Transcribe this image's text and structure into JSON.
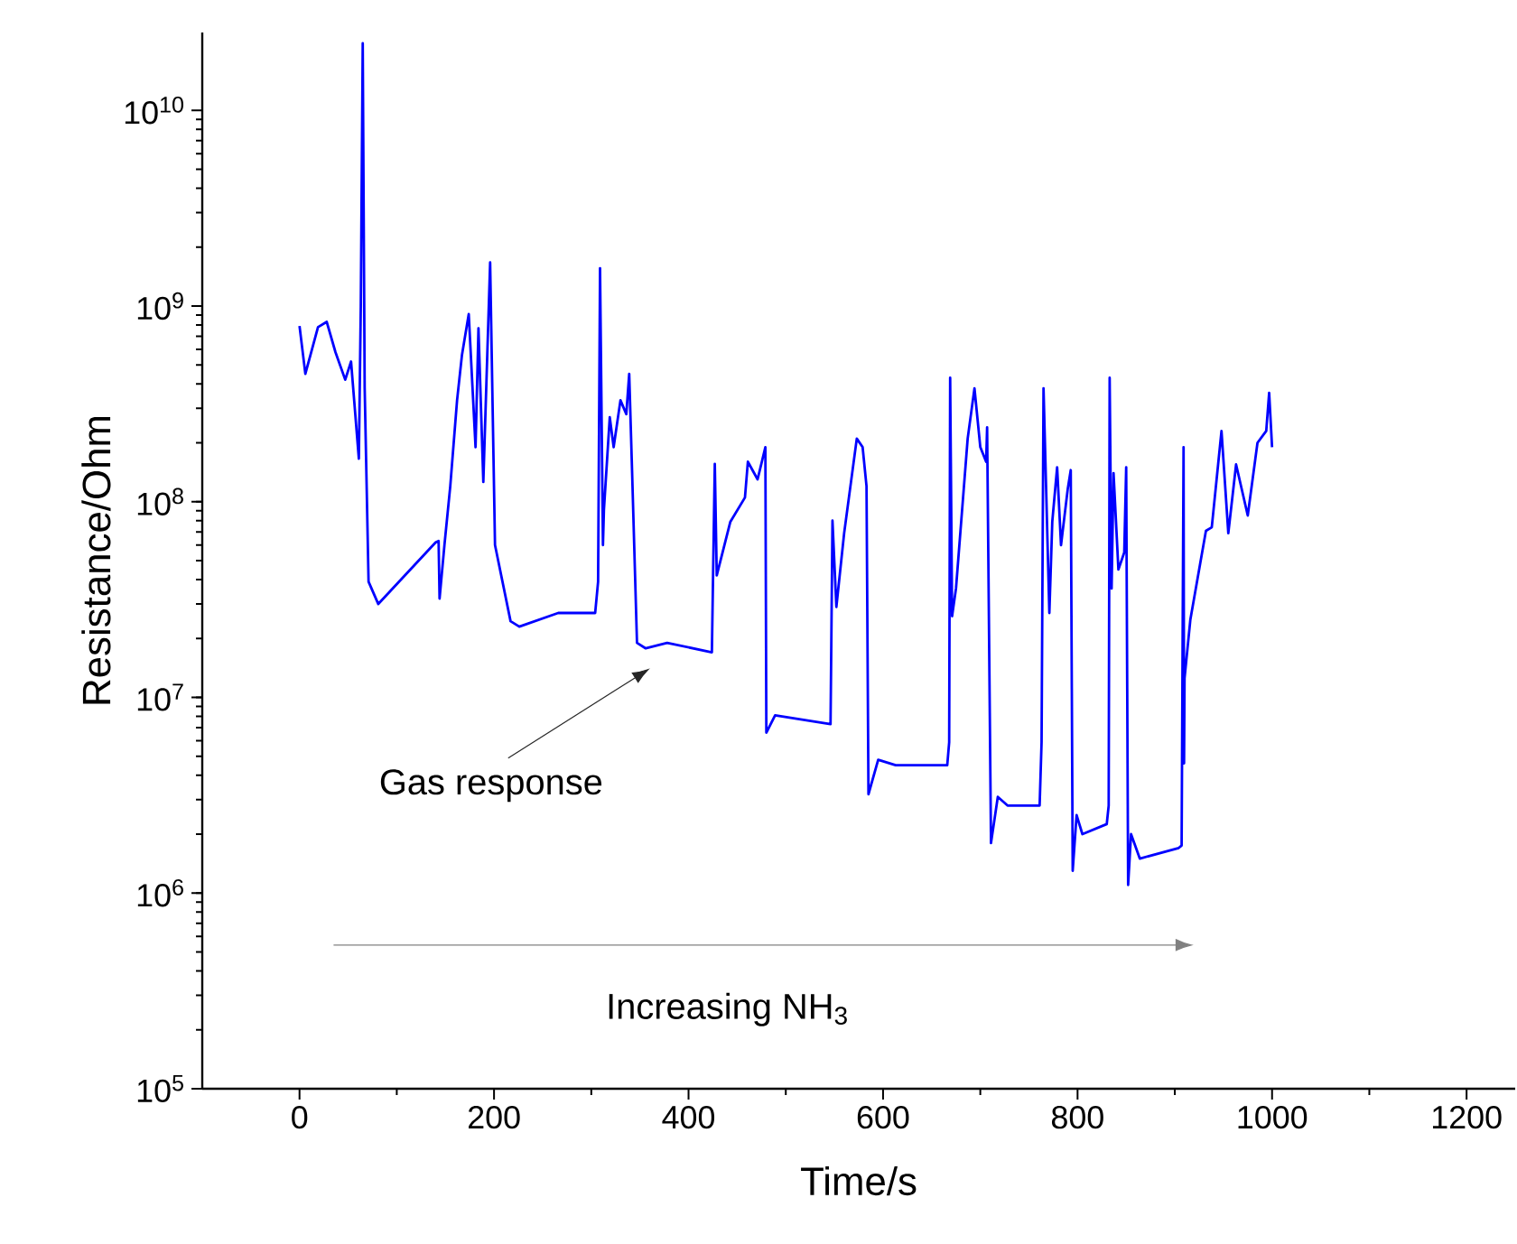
{
  "chart_data": {
    "type": "line",
    "xlabel": "Time/s",
    "ylabel": "Resistance/Ohm",
    "log": "y",
    "grid": false,
    "marker": "none",
    "line_style": "solid",
    "xlim": [
      -100,
      1250
    ],
    "xticks": [
      0,
      200,
      400,
      600,
      800,
      1000,
      1200
    ],
    "ylim": [
      100000,
      25000000000
    ],
    "yticks": [
      {
        "value": 100000,
        "label": "10$^{5}$"
      },
      {
        "value": 1000000,
        "label": "10$^{6}$"
      },
      {
        "value": 10000000,
        "label": "10$^{7}$"
      },
      {
        "value": 100000000,
        "label": "10$^{8}$"
      },
      {
        "value": 1000000000,
        "label": "10$^{9}$"
      },
      {
        "value": 10000000000,
        "label": "10$^{10}$"
      }
    ],
    "annotations": [
      "Gas response",
      "Increasing NH$_{3}$"
    ],
    "series": [
      {
        "color": "#0000ff",
        "x": [
          0,
          6,
          19,
          28,
          37,
          47,
          53,
          61,
          63,
          65,
          67,
          71,
          81,
          140,
          143,
          144,
          149,
          155,
          162,
          167,
          174,
          181,
          184,
          189,
          196,
          201,
          217,
          226,
          266,
          304,
          307,
          309,
          312,
          313,
          319,
          323,
          330,
          336,
          339,
          342,
          347,
          356,
          378,
          424,
          427,
          429,
          443,
          458,
          461,
          471,
          479,
          480,
          489,
          546,
          548,
          552,
          560,
          573,
          579,
          583,
          585,
          595,
          613,
          666,
          668,
          669,
          671,
          675,
          687,
          694,
          700,
          706,
          707,
          711,
          718,
          728,
          761,
          763,
          765,
          771,
          774,
          779,
          783,
          790,
          793,
          795,
          799,
          805,
          830,
          832,
          833,
          835,
          837,
          842,
          848,
          850,
          852,
          855,
          864,
          904,
          907,
          909,
          909.5,
          910,
          916,
          926,
          932,
          938,
          948,
          955,
          963,
          975,
          985,
          994,
          997,
          1000
        ],
        "values": [
          790000000,
          450000000,
          780000000,
          830000000,
          580000000,
          420000000,
          520000000,
          166000000,
          1000000000,
          22000000000,
          380000000,
          39000000,
          30000000,
          62000000,
          63000000,
          32000000,
          60000000,
          120000000,
          330000000,
          560000000,
          910000000,
          190000000,
          770000000,
          126000000,
          1670000000,
          60000000,
          24500000,
          23000000,
          27000000,
          27000000,
          39000000,
          1560000000,
          60000000,
          91000000,
          270000000,
          190000000,
          330000000,
          280000000,
          450000000,
          140000000,
          19000000,
          17800000,
          19000000,
          17000000,
          156000000,
          42000000,
          79000000,
          105000000,
          160000000,
          130000000,
          190000000,
          6600000,
          8100000,
          7300000,
          80000000,
          29000000,
          69000000,
          210000000,
          190000000,
          120000000,
          3200000,
          4800000,
          4500000,
          4500000,
          5900000,
          430000000,
          26000000,
          36000000,
          210000000,
          380000000,
          190000000,
          160000000,
          240000000,
          1800000,
          3100000,
          2800000,
          2800000,
          5900000,
          380000000,
          27000000,
          79000000,
          150000000,
          60000000,
          117000000,
          145000000,
          1300000,
          2500000,
          2000000,
          2250000,
          2800000,
          430000000,
          36000000,
          140000000,
          45000000,
          55000000,
          150000000,
          1100000,
          2000000,
          1500000,
          1700000,
          1750000,
          190000000,
          4600000,
          12500000,
          25000000,
          48000000,
          71000000,
          74000000,
          230000000,
          69000000,
          155000000,
          85000000,
          200000000,
          230000000,
          360000000,
          190000000
        ]
      }
    ]
  }
}
